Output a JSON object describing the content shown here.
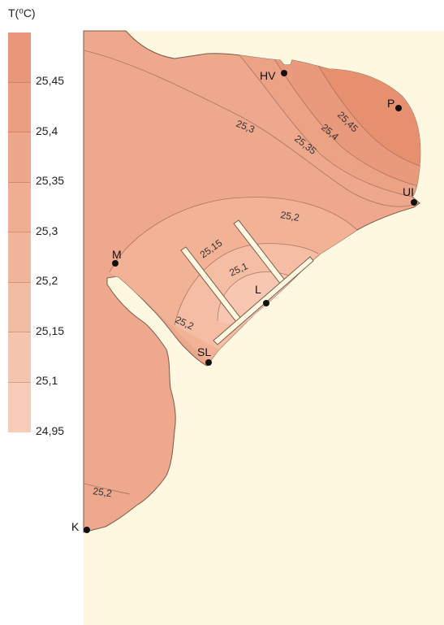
{
  "legend": {
    "title": "T(⁰C)",
    "colors": [
      "#e9977a",
      "#eb9e82",
      "#eda78a",
      "#efae92",
      "#f0b49a",
      "#f2bca4",
      "#f4c4ae",
      "#f7cdb9"
    ],
    "ticks": [
      "25,45",
      "25,4",
      "25,35",
      "25,3",
      "25,2",
      "25,15",
      "25,1",
      "24,95"
    ]
  },
  "map": {
    "land_color": "#fdf8df",
    "water_base_color": "#eda88d",
    "zones": {
      "zone_25_45": "#e7906f",
      "zone_25_4": "#ea9a7c",
      "zone_25_35": "#eca285",
      "zone_25_2": "#f1b296",
      "zone_25_15": "#f4bda4",
      "zone_25_1": "#f7c7b2"
    },
    "contour_labels": [
      "25,45",
      "25,4",
      "25,35",
      "25,3",
      "25,2",
      "25,15",
      "25,1",
      "25,2",
      "25,2"
    ],
    "stations": [
      "HV",
      "P",
      "UI",
      "M",
      "L",
      "SL",
      "K"
    ]
  }
}
